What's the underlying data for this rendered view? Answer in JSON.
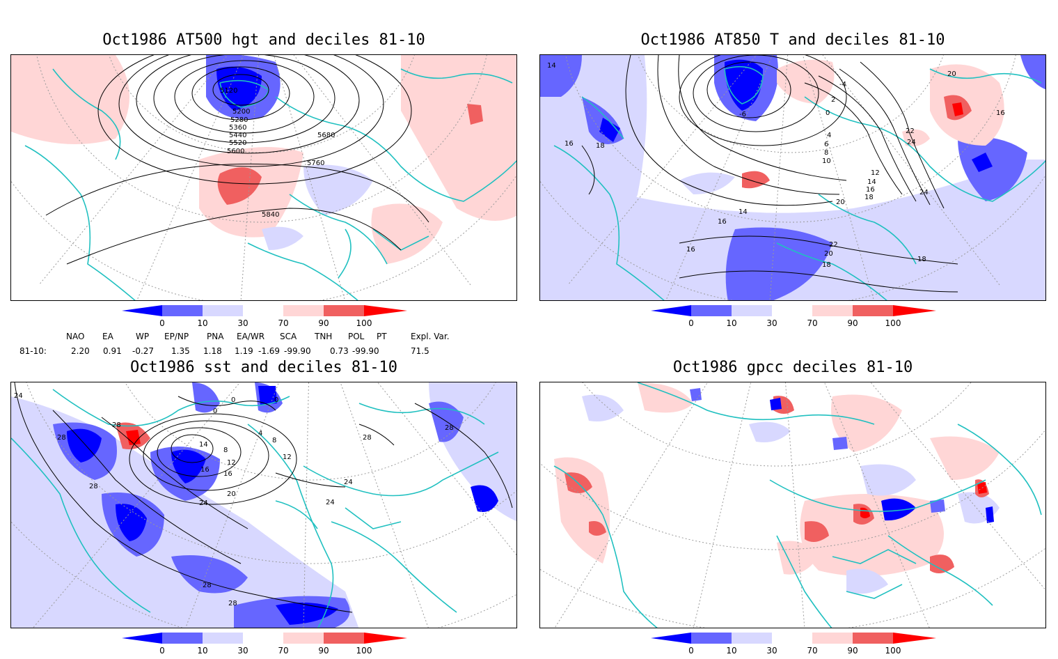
{
  "panels": [
    {
      "title": "Oct1986 AT500 hgt and deciles 81-10",
      "contour_labels": [
        "5120",
        "5200",
        "5280",
        "5360",
        "5440",
        "5520",
        "5600",
        "5680",
        "5760",
        "5840"
      ]
    },
    {
      "title": "Oct1986 AT850 T and deciles 81-10",
      "contour_labels": [
        "14",
        "16",
        "18",
        "-6",
        "-4",
        "2",
        "0",
        "4",
        "6",
        "8",
        "10",
        "12",
        "14",
        "16",
        "18",
        "20",
        "22",
        "24",
        "20",
        "24",
        "16",
        "14",
        "16",
        "22",
        "20",
        "18",
        "16",
        "18"
      ]
    },
    {
      "title": "Oct1986 sst and deciles 81-10",
      "contour_labels": [
        "24",
        "28",
        "28",
        "28",
        "0",
        "0",
        "0",
        "4",
        "8",
        "14",
        "16",
        "12",
        "8",
        "12",
        "16",
        "20",
        "24",
        "24",
        "24",
        "28",
        "28",
        "28",
        "28"
      ]
    },
    {
      "title": "Oct1986 gpcc deciles 81-10",
      "contour_labels": []
    }
  ],
  "colorbar": {
    "ticks": [
      "0",
      "10",
      "30",
      "70",
      "90",
      "100"
    ],
    "colors": [
      "#0000ff",
      "#6666ff",
      "#d8d8ff",
      "#ffffff",
      "#ffd6d6",
      "#f06060",
      "#ff0000"
    ]
  },
  "indices": {
    "headers": [
      "NAO",
      "EA",
      "WP",
      "EP/NP",
      "PNA",
      "EA/WR",
      "SCA",
      "TNH",
      "POL",
      "PT",
      "Expl. Var."
    ],
    "row_label": "81-10:",
    "values": [
      "2.20",
      "0.91",
      "-0.27",
      "1.35",
      "1.18",
      "1.19",
      "-1.69",
      "-99.90",
      "0.73",
      "-99.90",
      "71.5"
    ]
  },
  "legend_colors": {
    "coast": "#20c0c0",
    "contour": "#000000",
    "grid": "#9a9a9a"
  }
}
